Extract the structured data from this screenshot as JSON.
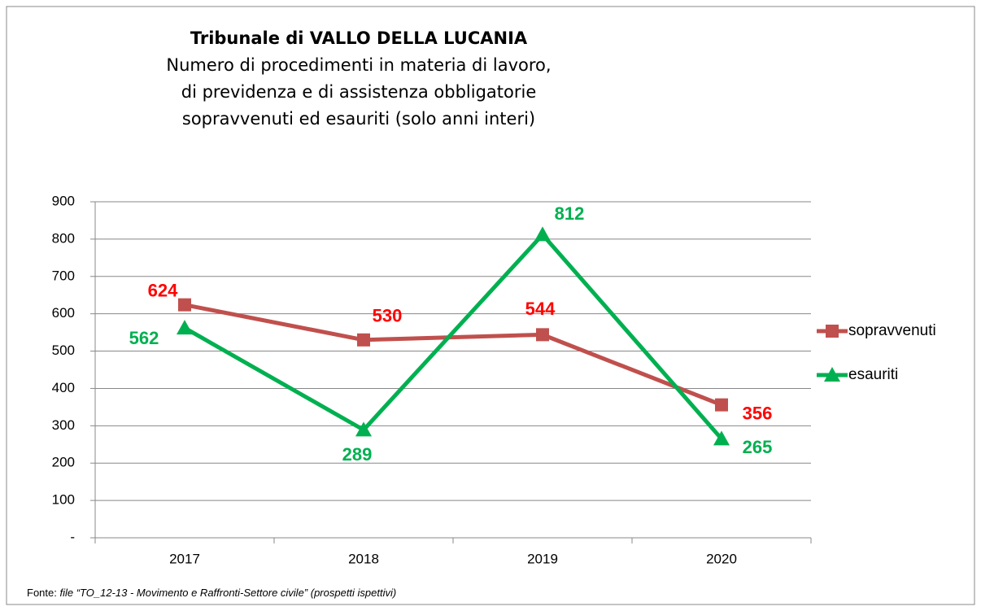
{
  "chart_data": {
    "type": "line",
    "title": "Tribunale di VALLO DELLA LUCANIA",
    "subtitle": [
      "Numero di procedimenti in materia di lavoro,",
      "di previdenza e di assistenza obbligatorie",
      "sopravvenuti ed esauriti (solo anni interi)"
    ],
    "categories": [
      "2017",
      "2018",
      "2019",
      "2020"
    ],
    "series": [
      {
        "name": "sopravvenuti",
        "color": "#c0504d",
        "label_color": "#ff0000",
        "marker": "square",
        "values": [
          624,
          530,
          544,
          356
        ]
      },
      {
        "name": "esauriti",
        "color": "#00b050",
        "label_color": "#00b050",
        "marker": "triangle",
        "values": [
          562,
          289,
          812,
          265
        ]
      }
    ],
    "ylim": [
      0,
      900
    ],
    "yticks": [
      {
        "value": 0,
        "label": "-"
      },
      100,
      200,
      300,
      400,
      500,
      600,
      700,
      800,
      900
    ],
    "grid": true,
    "legend": "right",
    "source": {
      "label": "Fonte:",
      "text": "file “TO_12-13 - Movimento e Raffronti-Settore civile” (prospetti ispettivi)"
    }
  }
}
